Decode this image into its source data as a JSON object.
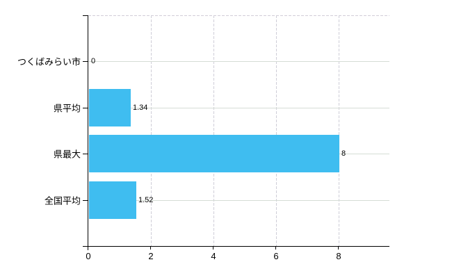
{
  "chart_style": {
    "background": "#ffffff",
    "axis_color": "#000000",
    "bar_color": "#3fbdf0",
    "h_grid_color": "#d5ddd5",
    "v_grid_color": "#cfced8",
    "top_border_color": "#d2cdd8",
    "text_color": "#000000"
  },
  "chart_data": {
    "type": "bar",
    "orientation": "horizontal",
    "title": "",
    "categories": [
      "つくばみらい市",
      "県平均",
      "県最大",
      "全国平均"
    ],
    "values": [
      0,
      1.34,
      8,
      1.52
    ],
    "value_labels": [
      "0",
      "1.34",
      "8",
      "1.52"
    ],
    "x_ticks": [
      0,
      2,
      4,
      6,
      8
    ],
    "x_tick_labels": [
      "0",
      "2",
      "4",
      "6",
      "8"
    ],
    "xlim": [
      0,
      9.62
    ],
    "ylabel": "",
    "xlabel": "",
    "grid": "on",
    "legend": "none"
  }
}
